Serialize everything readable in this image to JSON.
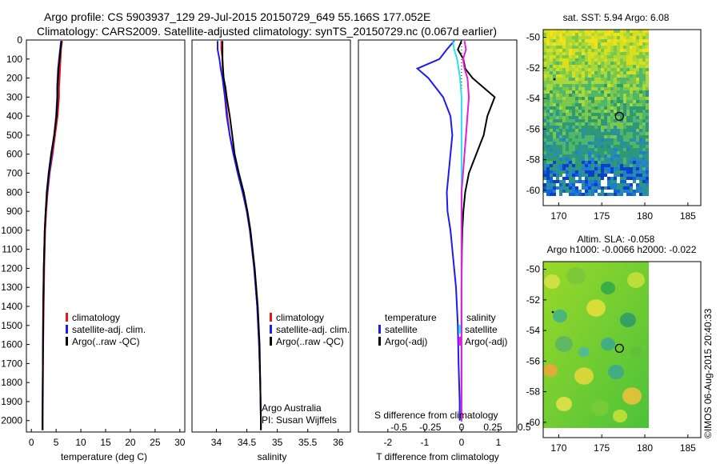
{
  "header": {
    "line1": "Argo profile: CS 5903937_129 29-Jul-2015 20150729_649 55.166S 177.052E",
    "line2": "Climatology: CARS2009. Satellite-adjusted climatology: synTS_20150729.nc (0.067d earlier)"
  },
  "watermark": "©IMOS 06-Aug-2015 20:40:33",
  "colors": {
    "climatology": "#e8141a",
    "satellite": "#1c1cf0",
    "argo": "#000000",
    "salinity_sat": "#2ee0ec",
    "salinity_argo": "#e020d8"
  },
  "chart_data": [
    {
      "id": "temperature",
      "type": "line",
      "xlabel": "temperature (deg C)",
      "ylabel": "",
      "xlim": [
        -1,
        31
      ],
      "ylim": [
        2060,
        0
      ],
      "xticks": [
        0,
        5,
        10,
        15,
        20,
        25,
        30
      ],
      "yticks": [
        0,
        100,
        200,
        300,
        400,
        500,
        600,
        700,
        800,
        900,
        1000,
        1100,
        1200,
        1300,
        1400,
        1500,
        1600,
        1700,
        1800,
        1900,
        2000
      ],
      "legend": [
        "climatology",
        "satellite-adj. clim.",
        "Argo(..raw -QC)"
      ],
      "series": [
        {
          "name": "climatology",
          "color": "#e8141a",
          "depth": [
            5,
            50,
            100,
            150,
            200,
            250,
            300,
            400,
            500,
            600,
            700,
            800,
            900,
            1000,
            1200,
            1400,
            1600,
            1800,
            2000,
            2050
          ],
          "values": [
            6.2,
            6.0,
            5.9,
            5.8,
            5.7,
            5.6,
            5.6,
            5.3,
            4.8,
            4.3,
            3.7,
            3.3,
            3.0,
            2.8,
            2.6,
            2.5,
            2.4,
            2.35,
            2.3,
            2.3
          ]
        },
        {
          "name": "satellite-adj. clim.",
          "color": "#1c1cf0",
          "depth": [
            5,
            50,
            100,
            150,
            200,
            250,
            300,
            400,
            500,
            600,
            700,
            800,
            900,
            1000,
            1200,
            1400,
            1600,
            1800,
            2000,
            2050
          ],
          "values": [
            6.0,
            5.8,
            5.6,
            5.4,
            5.3,
            5.2,
            5.2,
            5.0,
            4.6,
            4.1,
            3.6,
            3.2,
            2.9,
            2.7,
            2.5,
            2.4,
            2.35,
            2.3,
            2.25,
            2.25
          ]
        },
        {
          "name": "Argo(..raw -QC)",
          "color": "#000000",
          "depth": [
            5,
            50,
            100,
            150,
            200,
            250,
            300,
            400,
            500,
            600,
            700,
            800,
            900,
            1000,
            1200,
            1400,
            1600,
            1800,
            2000,
            2050
          ],
          "values": [
            6.1,
            5.9,
            5.7,
            5.5,
            5.4,
            5.3,
            5.3,
            5.1,
            4.6,
            4.0,
            3.5,
            3.1,
            2.9,
            2.7,
            2.5,
            2.4,
            2.35,
            2.3,
            2.25,
            2.25
          ]
        }
      ]
    },
    {
      "id": "salinity",
      "type": "line",
      "xlabel": "salinity",
      "xlim": [
        33.6,
        36.2
      ],
      "ylim": [
        2060,
        0
      ],
      "xticks": [
        34,
        34.5,
        35,
        35.5,
        36
      ],
      "xticklabels": [
        "34",
        "34.5",
        "35",
        "35.5",
        "36"
      ],
      "legend": [
        "climatology",
        "satellite-adj. clim.",
        "Argo(..raw -QC)"
      ],
      "annotation": [
        "Argo Australia",
        "PI: Susan Wijffels"
      ],
      "series": [
        {
          "name": "climatology",
          "color": "#e8141a",
          "depth": [
            5,
            50,
            100,
            150,
            200,
            250,
            300,
            400,
            500,
            600,
            700,
            800,
            900,
            1000,
            1200,
            1400,
            1600,
            1800,
            2000,
            2050
          ],
          "values": [
            34.08,
            34.08,
            34.1,
            34.1,
            34.12,
            34.14,
            34.15,
            34.18,
            34.22,
            34.28,
            34.36,
            34.44,
            34.5,
            34.55,
            34.62,
            34.67,
            34.7,
            34.72,
            34.73,
            34.73
          ]
        },
        {
          "name": "satellite-adj. clim.",
          "color": "#1c1cf0",
          "depth": [
            5,
            50,
            100,
            150,
            200,
            250,
            300,
            400,
            500,
            600,
            700,
            800,
            900,
            1000,
            1200,
            1400,
            1600,
            1800,
            2000,
            2050
          ],
          "values": [
            34.02,
            34.02,
            34.05,
            34.07,
            34.1,
            34.12,
            34.14,
            34.17,
            34.22,
            34.28,
            34.35,
            34.43,
            34.5,
            34.55,
            34.62,
            34.67,
            34.7,
            34.72,
            34.73,
            34.73
          ]
        },
        {
          "name": "Argo(..raw -QC)",
          "color": "#000000",
          "depth": [
            5,
            50,
            100,
            150,
            200,
            250,
            300,
            400,
            500,
            600,
            700,
            800,
            900,
            1000,
            1200,
            1400,
            1600,
            1800,
            2000,
            2050
          ],
          "values": [
            34.1,
            34.1,
            34.1,
            34.11,
            34.12,
            34.15,
            34.17,
            34.22,
            34.26,
            34.3,
            34.37,
            34.45,
            34.51,
            34.56,
            34.63,
            34.68,
            34.71,
            34.72,
            34.73,
            34.73
          ]
        }
      ]
    },
    {
      "id": "difference",
      "type": "line",
      "xlabel": "T difference from climatology",
      "xlabel2": "S difference from climatology",
      "xlim": [
        -2.8,
        1.5
      ],
      "ylim": [
        2060,
        0
      ],
      "xticks": [
        -2,
        -1,
        0,
        1
      ],
      "xticks_s": [
        -0.5,
        -0.25,
        0,
        0.25,
        0.5
      ],
      "xticklabels_s": [
        "-0.5",
        "-0.25",
        "0",
        "0.25",
        "0.5"
      ],
      "legend": {
        "temperature_title": "temperature",
        "salinity_title": "salinity",
        "items": [
          "satellite",
          "Argo(-adj)",
          "satellite",
          "Argo(-adj)"
        ]
      },
      "series": [
        {
          "name": "T satellite",
          "color": "#1c1cf0",
          "depth": [
            5,
            50,
            100,
            150,
            200,
            300,
            400,
            500,
            600,
            700,
            800,
            900,
            1000,
            1100,
            1300,
            1500,
            1700,
            1900,
            2000
          ],
          "values": [
            -0.2,
            -0.4,
            -0.6,
            -1.2,
            -0.9,
            -0.5,
            -0.3,
            -0.25,
            -0.3,
            -0.35,
            -0.4,
            -0.38,
            -0.3,
            -0.25,
            -0.15,
            -0.1,
            -0.08,
            -0.05,
            -0.05
          ]
        },
        {
          "name": "T Argo(-adj)",
          "color": "#000000",
          "depth": [
            5,
            50,
            100,
            150,
            200,
            300,
            400,
            500,
            600,
            700,
            800,
            900,
            1000,
            1100,
            1300,
            1500,
            1700,
            1900,
            2000
          ],
          "values": [
            0.0,
            -0.1,
            0.05,
            0.1,
            0.3,
            0.9,
            0.7,
            0.6,
            0.4,
            0.2,
            0.1,
            0.05,
            0.02,
            0.01,
            0.0,
            0.0,
            0.0,
            0.0,
            0.0
          ]
        },
        {
          "name": "S satellite",
          "color": "#2ee0ec",
          "depth": [
            5,
            50,
            100,
            150,
            200,
            300,
            400,
            500,
            600,
            700,
            800,
            900,
            1000,
            1100,
            1300,
            1500,
            1700,
            1900,
            2000
          ],
          "values": [
            -0.06,
            -0.05,
            -0.03,
            -0.02,
            -0.01,
            0.0,
            0.0,
            0.0,
            0.0,
            0.0,
            0.0,
            0.0,
            0.0,
            0.0,
            0.0,
            0.0,
            0.0,
            0.0,
            0.0
          ]
        },
        {
          "name": "S Argo(-adj)",
          "color": "#e020d8",
          "depth": [
            5,
            50,
            100,
            150,
            200,
            300,
            400,
            500,
            600,
            700,
            800,
            900,
            1000,
            1100,
            1300,
            1500,
            1700,
            1900,
            2000
          ],
          "values": [
            0.02,
            0.03,
            0.01,
            0.02,
            0.04,
            0.05,
            0.04,
            0.03,
            0.02,
            0.01,
            0.0,
            0.0,
            0.0,
            0.0,
            0.0,
            0.0,
            0.0,
            0.0,
            0.0
          ]
        }
      ]
    },
    {
      "id": "sst-map",
      "type": "heatmap",
      "title": "sat. SST: 5.94 Argo: 6.08",
      "xlim": [
        168.2,
        186.5
      ],
      "ylim": [
        -61,
        -49.5
      ],
      "xticks": [
        170,
        175,
        180,
        185
      ],
      "yticks": [
        -50,
        -52,
        -54,
        -56,
        -58,
        -60
      ],
      "argo_position": [
        177.052,
        -55.166
      ]
    },
    {
      "id": "sla-map",
      "type": "heatmap",
      "title": "Altim. SLA: -0.058",
      "subtitle": "Argo h1000: -0.0066 h2000: -0.022",
      "xlim": [
        168.2,
        186.5
      ],
      "ylim": [
        -61,
        -49.5
      ],
      "xticks": [
        170,
        175,
        180,
        185
      ],
      "yticks": [
        -50,
        -52,
        -54,
        -56,
        -58,
        -60
      ],
      "argo_position": [
        177.052,
        -55.166
      ]
    }
  ]
}
